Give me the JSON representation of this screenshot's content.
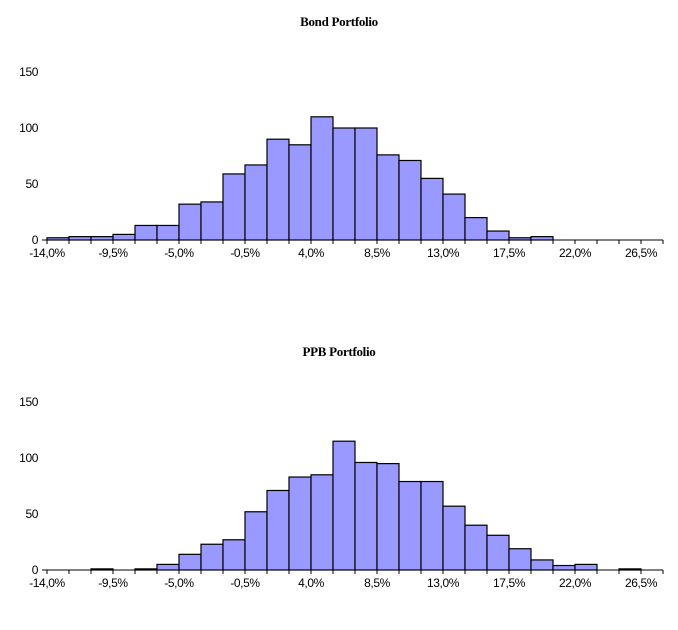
{
  "chart_data": [
    {
      "type": "bar",
      "title": "Bond Portfolio",
      "xlabel": "",
      "ylabel": "",
      "ylim": [
        0,
        150
      ],
      "yticks": [
        "0",
        "50",
        "100",
        "150"
      ],
      "xtick_labels": [
        "-14,0%",
        "-9,5%",
        "-5,0%",
        "-0,5%",
        "4,0%",
        "8,5%",
        "13,0%",
        "17,5%",
        "22,0%",
        "26,5%"
      ],
      "bin_start": -14.0,
      "bin_width": 1.5,
      "values": [
        2,
        3,
        3,
        5,
        13,
        13,
        32,
        34,
        59,
        67,
        90,
        85,
        110,
        100,
        100,
        76,
        71,
        55,
        41,
        20,
        8,
        2,
        3,
        0,
        0,
        0,
        0,
        0
      ],
      "bar_color": "#9999ff",
      "grid": false
    },
    {
      "type": "bar",
      "title": "PPB Portfolio",
      "xlabel": "",
      "ylabel": "",
      "ylim": [
        0,
        150
      ],
      "yticks": [
        "0",
        "50",
        "100",
        "150"
      ],
      "xtick_labels": [
        "-14,0%",
        "-9,5%",
        "-5,0%",
        "-0,5%",
        "4,0%",
        "8,5%",
        "13,0%",
        "17,5%",
        "22,0%",
        "26,5%"
      ],
      "bin_start": -14.0,
      "bin_width": 1.5,
      "values": [
        0,
        0,
        1,
        0,
        1,
        5,
        14,
        23,
        27,
        52,
        71,
        83,
        85,
        115,
        96,
        95,
        79,
        79,
        57,
        40,
        31,
        19,
        9,
        4,
        5,
        0,
        1,
        0
      ],
      "bar_color": "#9999ff",
      "grid": false
    }
  ]
}
